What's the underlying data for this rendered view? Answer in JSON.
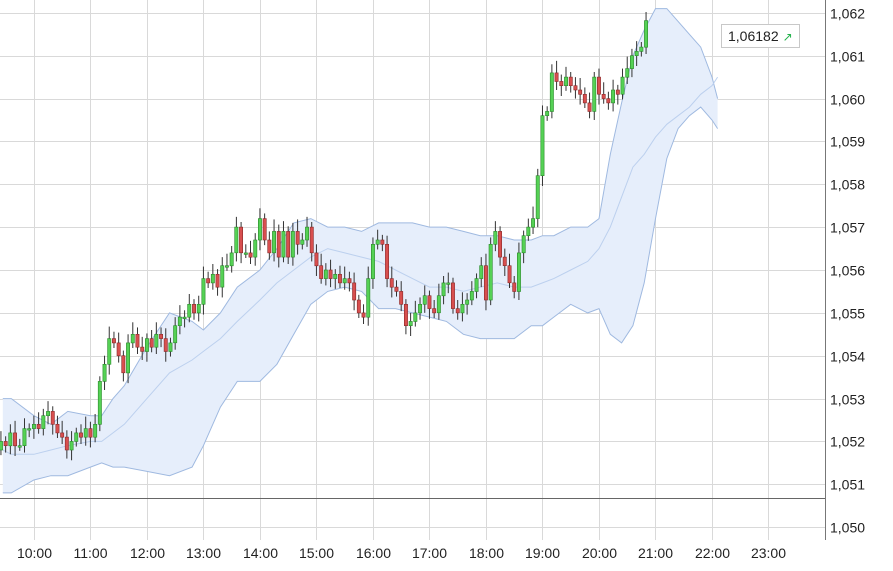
{
  "chart_data": {
    "type": "candlestick",
    "ylim": [
      1.0497,
      1.0623
    ],
    "xlim_hours": [
      9.4,
      24.0
    ],
    "grid": true,
    "y_ticks": [
      "1,062",
      "1,061",
      "1,060",
      "1,059",
      "1,058",
      "1,057",
      "1,056",
      "1,055",
      "1,054",
      "1,053",
      "1,052",
      "1,051",
      "1,050"
    ],
    "y_tick_values": [
      1.062,
      1.061,
      1.06,
      1.059,
      1.058,
      1.057,
      1.056,
      1.055,
      1.054,
      1.053,
      1.052,
      1.051,
      1.05
    ],
    "x_ticks": [
      "10:00",
      "11:00",
      "12:00",
      "13:00",
      "14:00",
      "15:00",
      "16:00",
      "17:00",
      "18:00",
      "19:00",
      "20:00",
      "21:00",
      "22:00",
      "23:00"
    ],
    "x_tick_hours": [
      10,
      11,
      12,
      13,
      14,
      15,
      16,
      17,
      18,
      19,
      20,
      21,
      22,
      23
    ],
    "reference_line": 1.05067,
    "last_price": {
      "label": "1,06182",
      "direction": "up-arrow-icon"
    },
    "candle_interval_minutes": 5,
    "start_hour": 9.0833,
    "start_open": 1.0513,
    "candle_closes": [
      1.0515,
      1.0514,
      1.0516,
      1.0518,
      1.052,
      1.0519,
      1.0522,
      1.0519,
      1.0519,
      1.0523,
      1.0523,
      1.0524,
      1.0523,
      1.0526,
      1.0527,
      1.0524,
      1.0522,
      1.0521,
      1.0518,
      1.052,
      1.0522,
      1.0521,
      1.0523,
      1.0521,
      1.0524,
      1.0534,
      1.0538,
      1.0544,
      1.0543,
      1.054,
      1.0536,
      1.0543,
      1.0545,
      1.0542,
      1.0541,
      1.0544,
      1.0542,
      1.0545,
      1.0544,
      1.0541,
      1.0543,
      1.0547,
      1.0549,
      1.0549,
      1.0552,
      1.055,
      1.0552,
      1.0558,
      1.0557,
      1.0559,
      1.0556,
      1.0561,
      1.0561,
      1.0564,
      1.057,
      1.0564,
      1.0564,
      1.0563,
      1.0567,
      1.0572,
      1.0567,
      1.0564,
      1.0569,
      1.0563,
      1.0569,
      1.0563,
      1.0569,
      1.0566,
      1.0567,
      1.057,
      1.0564,
      1.0561,
      1.0558,
      1.056,
      1.0558,
      1.0559,
      1.0557,
      1.0558,
      1.0557,
      1.0553,
      1.055,
      1.0549,
      1.0558,
      1.0566,
      1.0567,
      1.0566,
      1.0558,
      1.0556,
      1.0555,
      1.0552,
      1.0547,
      1.0548,
      1.055,
      1.0552,
      1.0554,
      1.0551,
      1.055,
      1.0554,
      1.0557,
      1.0557,
      1.0551,
      1.055,
      1.0552,
      1.0553,
      1.0555,
      1.0558,
      1.0561,
      1.0553,
      1.0566,
      1.0569,
      1.0563,
      1.0561,
      1.0557,
      1.0555,
      1.0564,
      1.0568,
      1.057,
      1.0572,
      1.0582,
      1.0596,
      1.0597,
      1.0606,
      1.0604,
      1.0603,
      1.0605,
      1.0603,
      1.0602,
      1.0601,
      1.0599,
      1.0597,
      1.0605,
      1.0601,
      1.06,
      1.0599,
      1.0602,
      1.0601,
      1.0605,
      1.0607,
      1.061,
      1.0611,
      1.0612,
      1.06182
    ],
    "bollinger": {
      "hours": [
        9.45,
        9.6,
        10.0,
        10.3,
        10.6,
        11.0,
        11.2,
        11.4,
        11.6,
        12.0,
        12.4,
        12.8,
        13.0,
        13.3,
        13.6,
        14.0,
        14.3,
        14.6,
        14.9,
        15.2,
        15.5,
        15.8,
        16.1,
        16.4,
        16.7,
        17.0,
        17.3,
        17.6,
        17.9,
        18.2,
        18.5,
        18.8,
        19.0,
        19.2,
        19.5,
        19.8,
        20.0,
        20.2,
        20.4,
        20.6,
        20.8,
        21.0,
        21.2,
        21.4,
        21.6,
        21.8,
        22.0,
        22.1
      ],
      "upper": [
        1.053,
        1.053,
        1.0526,
        1.0524,
        1.0527,
        1.0526,
        1.0526,
        1.053,
        1.0533,
        1.0542,
        1.055,
        1.0548,
        1.0546,
        1.055,
        1.0556,
        1.056,
        1.0565,
        1.0571,
        1.0572,
        1.057,
        1.057,
        1.0569,
        1.0571,
        1.0571,
        1.0571,
        1.057,
        1.057,
        1.0569,
        1.0568,
        1.0568,
        1.0567,
        1.0567,
        1.0568,
        1.0568,
        1.057,
        1.057,
        1.0572,
        1.0587,
        1.0599,
        1.061,
        1.0616,
        1.0621,
        1.0621,
        1.0618,
        1.0615,
        1.0612,
        1.0605,
        1.06
      ],
      "middle": [
        1.0518,
        1.0517,
        1.0517,
        1.0518,
        1.0519,
        1.052,
        1.052,
        1.0522,
        1.0524,
        1.053,
        1.0536,
        1.0539,
        1.0541,
        1.0544,
        1.0548,
        1.0553,
        1.0557,
        1.056,
        1.0563,
        1.0565,
        1.0564,
        1.0563,
        1.0562,
        1.056,
        1.0558,
        1.0556,
        1.0556,
        1.0555,
        1.0556,
        1.0557,
        1.0556,
        1.0556,
        1.0557,
        1.0558,
        1.056,
        1.0562,
        1.0565,
        1.057,
        1.0577,
        1.0584,
        1.0587,
        1.0591,
        1.0594,
        1.0596,
        1.0598,
        1.0601,
        1.0603,
        1.0605
      ],
      "lower": [
        1.0508,
        1.0508,
        1.0511,
        1.0512,
        1.0512,
        1.0514,
        1.0515,
        1.0514,
        1.0514,
        1.0513,
        1.0512,
        1.0514,
        1.0519,
        1.0528,
        1.0534,
        1.0534,
        1.0538,
        1.0545,
        1.0552,
        1.0555,
        1.0556,
        1.0555,
        1.0551,
        1.0551,
        1.055,
        1.0549,
        1.0548,
        1.0545,
        1.0544,
        1.0544,
        1.0544,
        1.0547,
        1.0547,
        1.0549,
        1.0552,
        1.055,
        1.0551,
        1.0545,
        1.0543,
        1.0547,
        1.0557,
        1.0572,
        1.0586,
        1.0593,
        1.0596,
        1.0598,
        1.0595,
        1.0593
      ]
    },
    "colors": {
      "up": "#55d155",
      "up_edge": "#2a8a2a",
      "down": "#d84f4f",
      "down_edge": "#8a2a2a",
      "band_fill": "#e6eefb",
      "band_edge": "#9fb9e0",
      "band_mid": "#bcd0ee",
      "grid": "#d9d9d9",
      "axis": "#777777",
      "reference": "#666666"
    }
  }
}
